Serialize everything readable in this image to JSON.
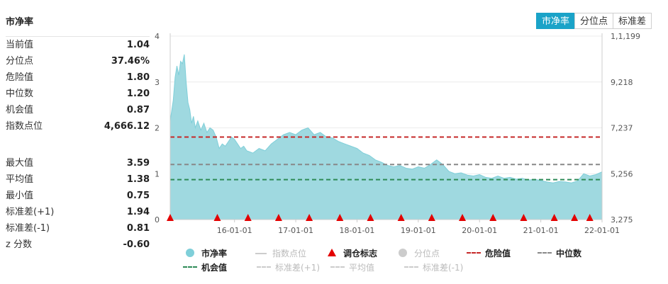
{
  "panel": {
    "title": "市净率"
  },
  "stats_top": [
    {
      "label": "当前值",
      "value": "1.04"
    },
    {
      "label": "分位点",
      "value": "37.46%"
    },
    {
      "label": "危险值",
      "value": "1.80"
    },
    {
      "label": "中位数",
      "value": "1.20"
    },
    {
      "label": "机会值",
      "value": "0.87"
    },
    {
      "label": "指数点位",
      "value": "4,666.12"
    }
  ],
  "stats_bottom": [
    {
      "label": "最大值",
      "value": "3.59"
    },
    {
      "label": "平均值",
      "value": "1.38"
    },
    {
      "label": "最小值",
      "value": "0.75"
    },
    {
      "label": "标准差(+1)",
      "value": "1.94"
    },
    {
      "label": "标准差(-1)",
      "value": "0.81"
    },
    {
      "label": "z 分数",
      "value": "-0.60"
    }
  ],
  "toggle": {
    "options": [
      "市净率",
      "分位点",
      "标准差"
    ],
    "active": 0
  },
  "legend": [
    {
      "label": "市净率",
      "symbol": "circle",
      "color": "#7fcfd9",
      "style": "strong"
    },
    {
      "label": "指数点位",
      "symbol": "line",
      "color": "#cccccc",
      "style": "dim"
    },
    {
      "label": "调仓标志",
      "symbol": "triangle",
      "color": "#e30000",
      "style": "strong"
    },
    {
      "label": "分位点",
      "symbol": "circle",
      "color": "#cccccc",
      "style": "dim"
    },
    {
      "label": "危险值",
      "symbol": "dash",
      "color": "#c62828",
      "style": "strong"
    },
    {
      "label": "中位数",
      "symbol": "dash",
      "color": "#888888",
      "style": "strong"
    },
    {
      "label": "机会值",
      "symbol": "dash",
      "color": "#2e8b57",
      "style": "strong"
    },
    {
      "label": "标准差(+1)",
      "symbol": "dash",
      "color": "#cccccc",
      "style": "dim"
    },
    {
      "label": "平均值",
      "symbol": "dash",
      "color": "#cccccc",
      "style": "dim"
    },
    {
      "label": "标准差(-1)",
      "symbol": "dash",
      "color": "#cccccc",
      "style": "dim"
    }
  ],
  "chart_data": {
    "type": "area",
    "x_ticks": [
      "16-01-01",
      "17-01-01",
      "18-01-01",
      "19-01-01",
      "20-01-01",
      "21-01-01",
      "22-01-01"
    ],
    "x_range": [
      2014.95,
      2022.0
    ],
    "x_tick_values": [
      2016.0,
      2017.0,
      2018.0,
      2019.0,
      2020.0,
      2021.0,
      2022.0
    ],
    "y_left": {
      "ticks": [
        "0",
        "1",
        "2",
        "3",
        "4"
      ],
      "ylim": [
        0,
        4
      ]
    },
    "y_right": {
      "ticks": [
        "3,275",
        "5,256",
        "7,237",
        "9,218",
        "1,1,199"
      ],
      "ylim": [
        3275,
        11199
      ]
    },
    "series": [
      {
        "x": [
          2014.95,
          2015.0,
          2015.03,
          2015.06,
          2015.09,
          2015.12,
          2015.15,
          2015.18,
          2015.21,
          2015.24,
          2015.27,
          2015.3,
          2015.33,
          2015.36,
          2015.4,
          2015.45,
          2015.5,
          2015.55,
          2015.6,
          2015.65,
          2015.7,
          2015.75,
          2015.8,
          2015.85,
          2015.9,
          2015.95,
          2016.0,
          2016.05,
          2016.1,
          2016.15,
          2016.2,
          2016.3,
          2016.4,
          2016.5,
          2016.6,
          2016.7,
          2016.8,
          2016.9,
          2017.0,
          2017.1,
          2017.2,
          2017.3,
          2017.4,
          2017.5,
          2017.6,
          2017.7,
          2017.8,
          2017.9,
          2018.0,
          2018.1,
          2018.2,
          2018.3,
          2018.4,
          2018.5,
          2018.6,
          2018.7,
          2018.8,
          2018.9,
          2019.0,
          2019.1,
          2019.2,
          2019.3,
          2019.4,
          2019.5,
          2019.6,
          2019.7,
          2019.8,
          2019.9,
          2020.0,
          2020.1,
          2020.2,
          2020.3,
          2020.4,
          2020.5,
          2020.6,
          2020.7,
          2020.8,
          2020.9,
          2021.0,
          2021.1,
          2021.2,
          2021.3,
          2021.4,
          2021.5,
          2021.6,
          2021.7,
          2021.8,
          2021.9,
          2022.0
        ],
        "values": [
          2.15,
          2.6,
          3.1,
          3.35,
          3.15,
          3.45,
          3.4,
          3.6,
          3.0,
          2.55,
          2.4,
          2.1,
          2.25,
          2.0,
          2.15,
          1.95,
          2.1,
          1.9,
          2.0,
          1.95,
          1.8,
          1.55,
          1.65,
          1.6,
          1.7,
          1.8,
          1.75,
          1.65,
          1.55,
          1.6,
          1.5,
          1.45,
          1.55,
          1.5,
          1.65,
          1.75,
          1.85,
          1.9,
          1.85,
          1.95,
          2.0,
          1.85,
          1.9,
          1.8,
          1.78,
          1.7,
          1.65,
          1.6,
          1.55,
          1.45,
          1.4,
          1.3,
          1.25,
          1.18,
          1.15,
          1.18,
          1.12,
          1.1,
          1.15,
          1.12,
          1.2,
          1.3,
          1.2,
          1.05,
          1.0,
          1.02,
          0.97,
          0.95,
          0.98,
          0.92,
          0.9,
          0.95,
          0.9,
          0.92,
          0.88,
          0.9,
          0.86,
          0.88,
          0.85,
          0.82,
          0.8,
          0.83,
          0.82,
          0.8,
          0.84,
          1.0,
          0.95,
          0.98,
          1.04
        ]
      }
    ],
    "reference_lines": [
      {
        "value": 1.8,
        "color": "#c62828"
      },
      {
        "value": 1.2,
        "color": "#888888"
      },
      {
        "value": 0.87,
        "color": "#2e8b57"
      }
    ],
    "markers_x": [
      2014.95,
      2015.72,
      2016.22,
      2016.72,
      2017.22,
      2017.72,
      2018.22,
      2018.72,
      2019.22,
      2019.72,
      2020.22,
      2020.72,
      2021.22,
      2021.55,
      2021.8
    ]
  }
}
